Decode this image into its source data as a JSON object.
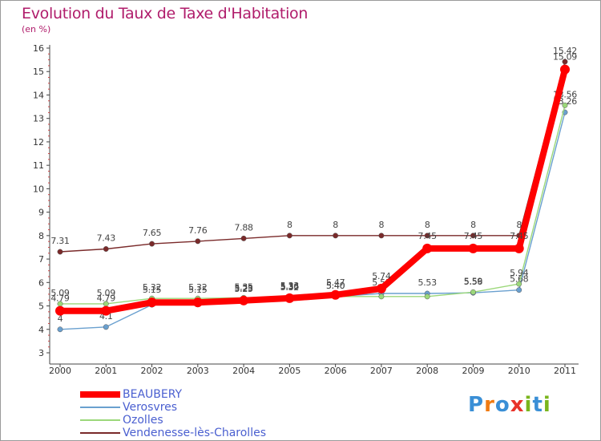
{
  "title": "Evolution du Taux de Taxe d'Habitation",
  "unit": "(en %)",
  "brand": {
    "letters": [
      "P",
      "r",
      "o",
      "x",
      "i",
      "t",
      "i"
    ],
    "colors": [
      "#3a8fd6",
      "#f07b12",
      "#3a8fd6",
      "#e8332a",
      "#7ab51d",
      "#3a8fd6",
      "#7ab51d"
    ]
  },
  "chart_data": {
    "type": "line",
    "x": [
      "2000",
      "2001",
      "2002",
      "2003",
      "2004",
      "2005",
      "2006",
      "2007",
      "2008",
      "2009",
      "2010",
      "2011"
    ],
    "ylim": [
      3,
      16
    ],
    "yticks": [
      "3",
      "4",
      "5",
      "6",
      "7",
      "8",
      "9",
      "10",
      "11",
      "12",
      "13",
      "14",
      "15",
      "16"
    ],
    "grid": false,
    "legend_position": "bottom-left",
    "series": [
      {
        "name": "Vendenesse-lès-Charolles",
        "color": "#7a2a2a",
        "values": [
          7.31,
          7.43,
          7.65,
          7.76,
          7.88,
          8,
          8,
          8,
          8,
          8,
          8,
          15.42
        ],
        "labels": [
          "7.31",
          "7.43",
          "7.65",
          "7.76",
          "7.88",
          "8",
          "8",
          "8",
          "8",
          "8",
          "8",
          "15.42"
        ]
      },
      {
        "name": "Verosvres",
        "color": "#6aa0cf",
        "values": [
          4,
          4.1,
          5.05,
          5.06,
          5.25,
          5.32,
          5.4,
          5.53,
          5.53,
          5.56,
          5.68,
          13.26
        ],
        "labels": [
          "4",
          "4.1",
          "",
          "",
          "5.25",
          "5.32",
          "5.40",
          "5.53",
          "5.53",
          "5.56",
          "5.68",
          "13.26"
        ]
      },
      {
        "name": "Ozolles",
        "color": "#9cd87a",
        "values": [
          5.09,
          5.09,
          5.32,
          5.32,
          5.35,
          5.36,
          5.4,
          5.4,
          5.4,
          5.59,
          5.94,
          13.56
        ],
        "labels": [
          "5.09",
          "5.09",
          "5.32",
          "5.32",
          "5.35",
          "5.36",
          "5.40",
          "",
          "",
          "5.59",
          "5.94",
          "13.56"
        ]
      },
      {
        "name": "BEAUBERY",
        "color": "#ff0000",
        "values": [
          4.79,
          4.79,
          5.15,
          5.15,
          5.23,
          5.33,
          5.47,
          5.74,
          7.45,
          7.45,
          7.45,
          15.09
        ],
        "labels": [
          "4.79",
          "4.79",
          "5.15",
          "5.15",
          "5.23",
          "5.33",
          "5.47",
          "5.74",
          "7.45",
          "7.45",
          "7.45",
          "15.09"
        ]
      }
    ],
    "legend": [
      "BEAUBERY",
      "Verosvres",
      "Ozolles",
      "Vendenesse-lès-Charolles"
    ]
  }
}
